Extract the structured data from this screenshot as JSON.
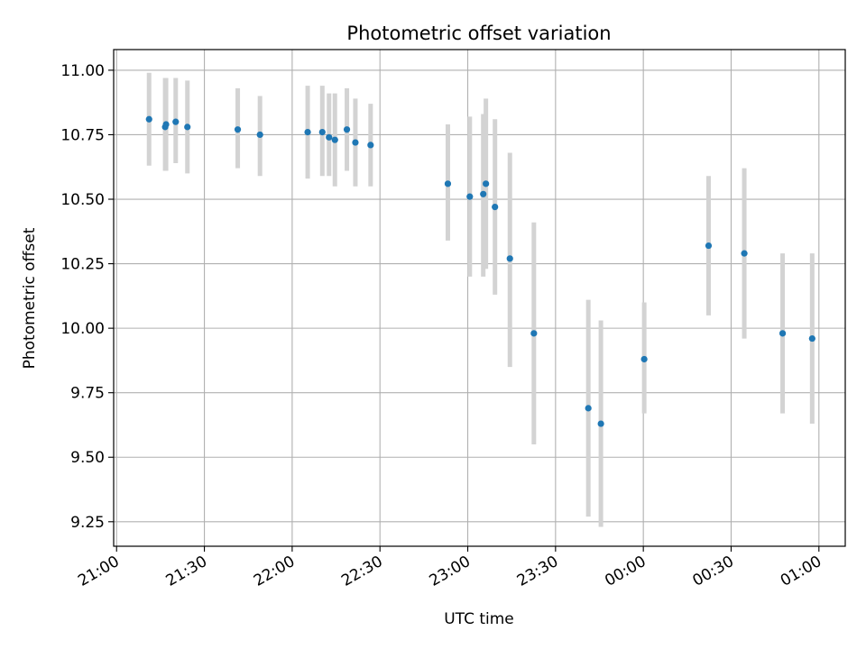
{
  "chart_data": {
    "type": "scatter",
    "title": "Photometric offset variation",
    "xlabel": "UTC time",
    "ylabel": "Photometric offset",
    "x_unit": "minutes after 21:00 UTC",
    "xlim": [
      -1,
      249
    ],
    "ylim": [
      9.155,
      11.08
    ],
    "grid": true,
    "x_ticks": [
      {
        "value": 0,
        "label": "21:00"
      },
      {
        "value": 30,
        "label": "21:30"
      },
      {
        "value": 60,
        "label": "22:00"
      },
      {
        "value": 90,
        "label": "22:30"
      },
      {
        "value": 120,
        "label": "23:00"
      },
      {
        "value": 150,
        "label": "23:30"
      },
      {
        "value": 180,
        "label": "00:00"
      },
      {
        "value": 210,
        "label": "00:30"
      },
      {
        "value": 240,
        "label": "01:00"
      }
    ],
    "y_ticks": [
      {
        "value": 9.25,
        "label": "9.25"
      },
      {
        "value": 9.5,
        "label": "9.50"
      },
      {
        "value": 9.75,
        "label": "9.75"
      },
      {
        "value": 10.0,
        "label": "10.00"
      },
      {
        "value": 10.25,
        "label": "10.25"
      },
      {
        "value": 10.5,
        "label": "10.50"
      },
      {
        "value": 10.75,
        "label": "10.75"
      },
      {
        "value": 11.0,
        "label": "11.00"
      }
    ],
    "colors": {
      "point": "#1f77b4",
      "errorbar": "#d3d3d3",
      "grid": "#b0b0b0"
    },
    "points": [
      {
        "x": 11.1,
        "y": 10.81,
        "lo": 10.63,
        "hi": 10.99
      },
      {
        "x": 16.6,
        "y": 10.78,
        "lo": 10.61,
        "hi": 10.97
      },
      {
        "x": 16.9,
        "y": 10.79,
        "lo": 10.61,
        "hi": 10.97
      },
      {
        "x": 20.2,
        "y": 10.8,
        "lo": 10.64,
        "hi": 10.97
      },
      {
        "x": 24.2,
        "y": 10.78,
        "lo": 10.6,
        "hi": 10.96
      },
      {
        "x": 41.4,
        "y": 10.77,
        "lo": 10.62,
        "hi": 10.93
      },
      {
        "x": 49.0,
        "y": 10.75,
        "lo": 10.59,
        "hi": 10.9
      },
      {
        "x": 65.3,
        "y": 10.76,
        "lo": 10.58,
        "hi": 10.94
      },
      {
        "x": 70.3,
        "y": 10.76,
        "lo": 10.59,
        "hi": 10.94
      },
      {
        "x": 72.6,
        "y": 10.74,
        "lo": 10.59,
        "hi": 10.91
      },
      {
        "x": 74.6,
        "y": 10.73,
        "lo": 10.55,
        "hi": 10.91
      },
      {
        "x": 78.7,
        "y": 10.77,
        "lo": 10.61,
        "hi": 10.93
      },
      {
        "x": 81.6,
        "y": 10.72,
        "lo": 10.55,
        "hi": 10.89
      },
      {
        "x": 86.8,
        "y": 10.71,
        "lo": 10.55,
        "hi": 10.87
      },
      {
        "x": 113.2,
        "y": 10.56,
        "lo": 10.34,
        "hi": 10.79
      },
      {
        "x": 120.7,
        "y": 10.51,
        "lo": 10.2,
        "hi": 10.82
      },
      {
        "x": 125.3,
        "y": 10.52,
        "lo": 10.2,
        "hi": 10.83
      },
      {
        "x": 126.2,
        "y": 10.56,
        "lo": 10.23,
        "hi": 10.89
      },
      {
        "x": 129.3,
        "y": 10.47,
        "lo": 10.13,
        "hi": 10.81
      },
      {
        "x": 134.4,
        "y": 10.27,
        "lo": 9.85,
        "hi": 10.68
      },
      {
        "x": 142.6,
        "y": 9.98,
        "lo": 9.55,
        "hi": 10.41
      },
      {
        "x": 161.2,
        "y": 9.69,
        "lo": 9.27,
        "hi": 10.11
      },
      {
        "x": 165.5,
        "y": 9.63,
        "lo": 9.23,
        "hi": 10.03
      },
      {
        "x": 180.3,
        "y": 9.88,
        "lo": 9.67,
        "hi": 10.1
      },
      {
        "x": 202.3,
        "y": 10.32,
        "lo": 10.05,
        "hi": 10.59
      },
      {
        "x": 214.5,
        "y": 10.29,
        "lo": 9.96,
        "hi": 10.62
      },
      {
        "x": 227.6,
        "y": 9.98,
        "lo": 9.67,
        "hi": 10.29
      },
      {
        "x": 237.7,
        "y": 9.96,
        "lo": 9.63,
        "hi": 10.29
      }
    ]
  }
}
